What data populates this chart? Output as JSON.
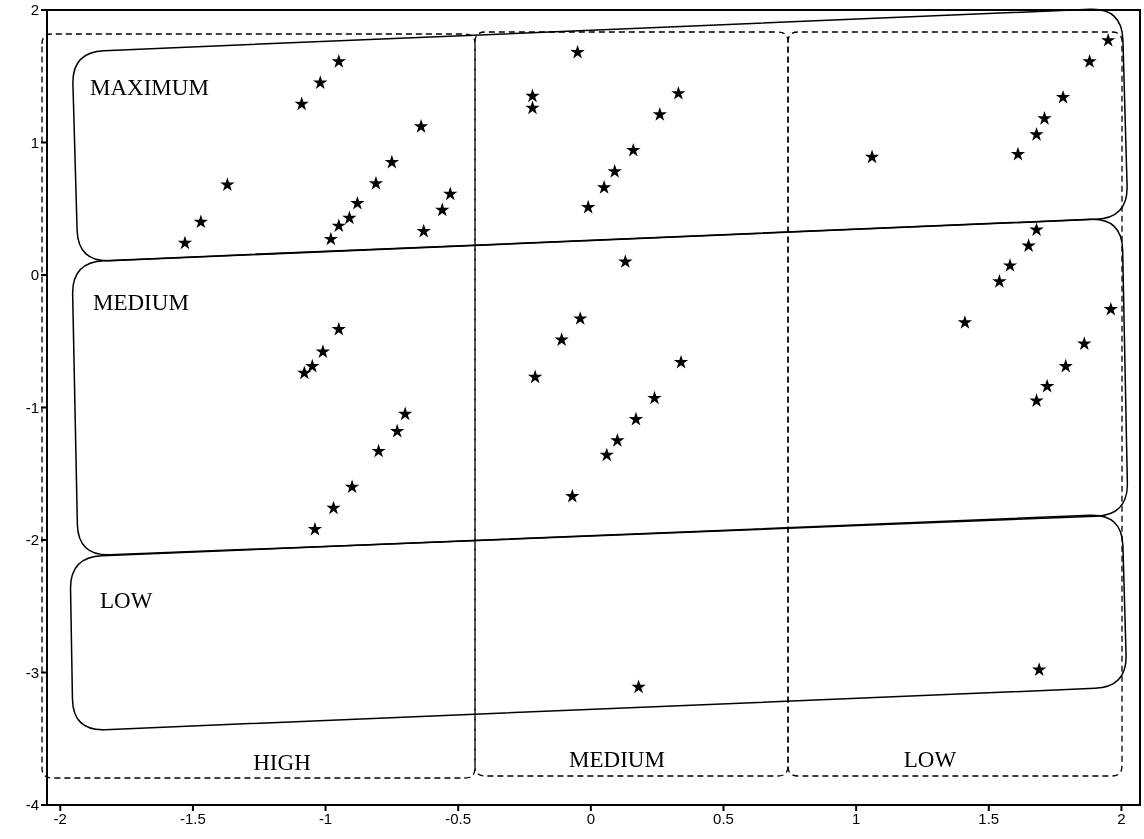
{
  "chart_data": {
    "type": "scatter",
    "marker": "star",
    "grid": false,
    "annotations": [
      "MAXIMUM",
      "MEDIUM",
      "LOW",
      "HIGH",
      "MEDIUM",
      "LOW"
    ],
    "xlim": [
      -2.05,
      2.07
    ],
    "xticks": [
      -2,
      -1.5,
      -1,
      -0.5,
      0,
      0.5,
      1,
      1.5,
      2
    ],
    "ylim": [
      -4,
      2
    ],
    "yticks": [
      -4,
      -3,
      -2,
      -1,
      0,
      1,
      2
    ],
    "series": [
      {
        "color": "#000000",
        "x": [
          -0.95,
          -1.02,
          -1.09,
          -0.64,
          -0.75,
          -0.81,
          -0.88,
          -0.91,
          -0.95,
          -0.98,
          -0.53,
          -0.56,
          -0.63,
          -1.37,
          -1.47,
          -1.53,
          -0.05,
          -0.22,
          -0.22,
          0.33,
          0.26,
          0.16,
          0.09,
          0.05,
          -0.01,
          0.13,
          1.95,
          1.88,
          1.78,
          1.71,
          1.68,
          1.61,
          1.06,
          1.68,
          1.65,
          1.58,
          1.54,
          1.41,
          1.96,
          1.86,
          1.79,
          1.72,
          1.68,
          -0.95,
          -1.01,
          -1.05,
          -1.08,
          -0.7,
          -0.73,
          -0.8,
          -0.9,
          -0.97,
          -1.04,
          -0.04,
          -0.11,
          -0.21,
          0.34,
          0.24,
          0.17,
          0.1,
          0.06,
          -0.07,
          0.18,
          1.69
        ],
        "values": [
          1.61,
          1.45,
          1.29,
          1.12,
          0.85,
          0.69,
          0.54,
          0.43,
          0.37,
          0.27,
          0.61,
          0.49,
          0.33,
          0.68,
          0.4,
          0.24,
          1.68,
          1.35,
          1.26,
          1.37,
          1.21,
          0.94,
          0.78,
          0.66,
          0.51,
          0.1,
          1.77,
          1.61,
          1.34,
          1.18,
          1.06,
          0.91,
          0.89,
          0.34,
          0.22,
          0.07,
          -0.05,
          -0.36,
          -0.26,
          -0.52,
          -0.69,
          -0.84,
          -0.95,
          -0.41,
          -0.58,
          -0.69,
          -0.74,
          -1.05,
          -1.18,
          -1.33,
          -1.6,
          -1.76,
          -1.92,
          -0.33,
          -0.49,
          -0.77,
          -0.66,
          -0.93,
          -1.09,
          -1.25,
          -1.36,
          -1.67,
          -3.11,
          -2.98
        ]
      }
    ]
  }
}
